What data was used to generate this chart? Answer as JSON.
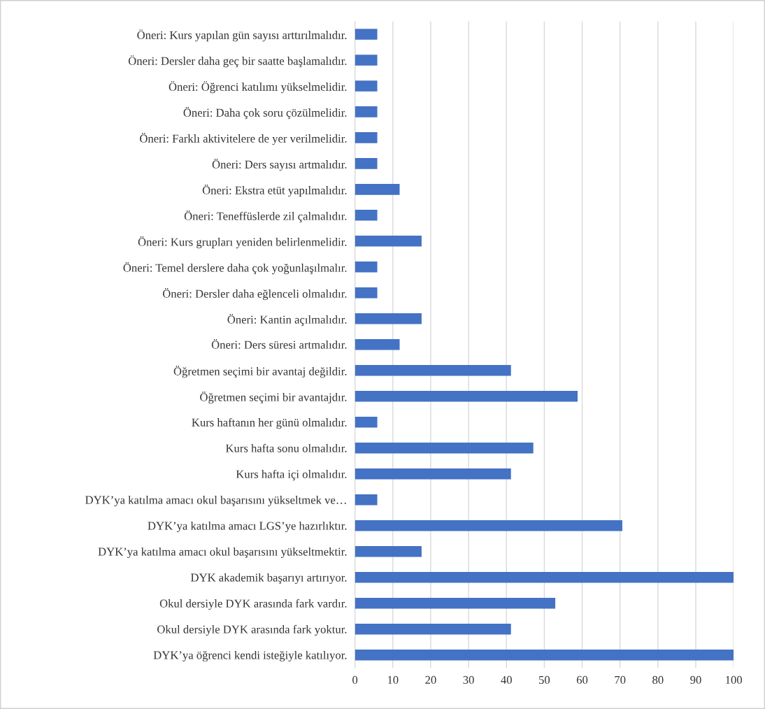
{
  "chart_data": {
    "type": "bar",
    "orientation": "horizontal",
    "categories": [
      "Öneri: Kurs yapılan gün sayısı arttırılmalıdır.",
      "Öneri: Dersler daha geç bir saatte başlamalıdır.",
      "Öneri: Öğrenci katılımı yükselmelidir.",
      "Öneri: Daha çok soru çözülmelidir.",
      "Öneri: Farklı aktivitelere de yer verilmelidir.",
      "Öneri: Ders sayısı artmalıdır.",
      "Öneri: Ekstra etüt yapılmalıdır.",
      "Öneri: Teneffüslerde zil çalmalıdır.",
      "Öneri: Kurs grupları yeniden belirlenmelidir.",
      "Öneri: Temel derslere daha çok yoğunlaşılmalır.",
      "Öneri: Dersler daha eğlenceli olmalıdır.",
      "Öneri: Kantin açılmalıdır.",
      "Öneri: Ders süresi artmalıdır.",
      "Öğretmen seçimi bir avantaj değildir.",
      "Öğretmen seçimi bir avantajdır.",
      "Kurs haftanın her günü olmalıdır.",
      "Kurs hafta sonu olmalıdır.",
      "Kurs hafta içi olmalıdır.",
      "DYK’ya katılma amacı okul başarısını yükseltmek ve…",
      "DYK’ya katılma amacı LGS’ye hazırlıktır.",
      "DYK’ya katılma amacı okul başarısını yükseltmektir.",
      "DYK akademik başarıyı artırıyor.",
      "Okul dersiyle DYK arasında fark vardır.",
      "Okul dersiyle DYK arasında fark yoktur.",
      "DYK’ya öğrenci kendi isteğiyle katılıyor."
    ],
    "values": [
      5.9,
      5.9,
      5.9,
      5.9,
      5.9,
      5.9,
      11.8,
      5.9,
      17.6,
      5.9,
      5.9,
      17.6,
      11.8,
      41.2,
      58.8,
      5.9,
      47.1,
      41.2,
      5.9,
      70.6,
      17.6,
      100,
      52.9,
      41.2,
      100
    ],
    "color": "#4472c4",
    "xlim": [
      0,
      100
    ],
    "xticks": [
      0,
      10,
      20,
      30,
      40,
      50,
      60,
      70,
      80,
      90,
      100
    ],
    "grid": "x",
    "legend": false
  }
}
